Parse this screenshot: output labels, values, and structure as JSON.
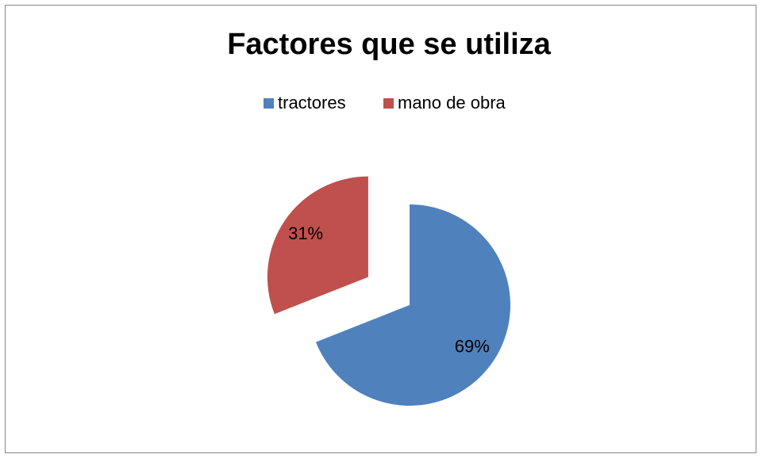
{
  "chart_data": {
    "type": "pie",
    "title": "Factores que se utiliza",
    "categories": [
      "tractores",
      "mano de obra"
    ],
    "values": [
      69,
      31
    ],
    "value_labels": [
      "69%",
      "31%"
    ],
    "colors": [
      "#4f81bd",
      "#c0504d"
    ],
    "exploded": [
      false,
      true
    ],
    "legend": "top"
  }
}
